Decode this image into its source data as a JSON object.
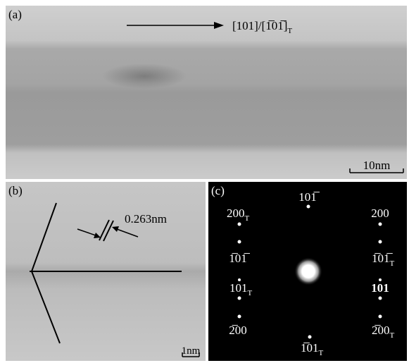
{
  "figure": {
    "panel_a": {
      "label": "(a)",
      "direction": {
        "text": "[101]/[1̅01̅]",
        "sub": "T"
      },
      "scale_bar": "10nm"
    },
    "panel_b": {
      "label": "(b)",
      "spacing": "0.263nm",
      "scale_bar": "1nm"
    },
    "panel_c": {
      "label": "(c)",
      "spots": [
        {
          "text": "101̅"
        },
        {
          "text": "200",
          "sub": "T"
        },
        {
          "text": "200"
        },
        {
          "text": "1̅01̅"
        },
        {
          "text": "1̅01̅",
          "sub": "T"
        },
        {
          "text": "101",
          "sub": "T"
        },
        {
          "text": "101"
        },
        {
          "text": "2̅00"
        },
        {
          "text": "2̅00",
          "sub": "T"
        },
        {
          "text": "1̅01",
          "sub": "T"
        }
      ]
    }
  }
}
